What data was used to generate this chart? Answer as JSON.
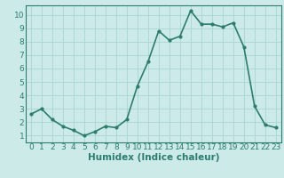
{
  "x": [
    0,
    1,
    2,
    3,
    4,
    5,
    6,
    7,
    8,
    9,
    10,
    11,
    12,
    13,
    14,
    15,
    16,
    17,
    18,
    19,
    20,
    21,
    22,
    23
  ],
  "y": [
    2.6,
    3.0,
    2.2,
    1.7,
    1.4,
    1.0,
    1.3,
    1.7,
    1.6,
    2.2,
    4.7,
    6.5,
    8.8,
    8.1,
    8.4,
    10.3,
    9.3,
    9.3,
    9.1,
    9.4,
    7.6,
    3.2,
    1.8,
    1.6
  ],
  "line_color": "#2d7d6e",
  "marker": "o",
  "marker_size": 2.0,
  "line_width": 1.2,
  "bg_color": "#cceae7",
  "grid_color": "#aad4d0",
  "axis_color": "#2d7d6e",
  "tick_color": "#2d7d6e",
  "label_color": "#2d7d6e",
  "xlabel": "Humidex (Indice chaleur)",
  "xlim": [
    -0.5,
    23.5
  ],
  "ylim": [
    0.5,
    10.7
  ],
  "yticks": [
    1,
    2,
    3,
    4,
    5,
    6,
    7,
    8,
    9,
    10
  ],
  "xticks": [
    0,
    1,
    2,
    3,
    4,
    5,
    6,
    7,
    8,
    9,
    10,
    11,
    12,
    13,
    14,
    15,
    16,
    17,
    18,
    19,
    20,
    21,
    22,
    23
  ],
  "xlabel_fontsize": 7.5,
  "tick_fontsize": 6.5
}
